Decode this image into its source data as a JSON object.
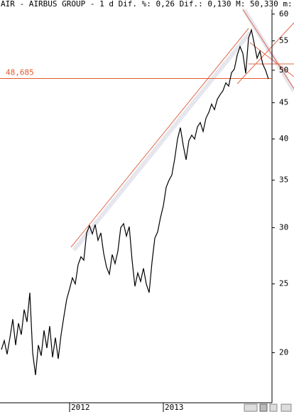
{
  "chart_data": {
    "type": "line",
    "title": "AIR - AIRBUS GROUP -  1 d Dif. %: 0,26 Dif.: 0,130 M: 50,330 m:",
    "categories": [
      null,
      null,
      null,
      null,
      null,
      null,
      null,
      null,
      null,
      null,
      null,
      null,
      null,
      null,
      null,
      null,
      null,
      null,
      null,
      null,
      null,
      null,
      null,
      null,
      "2012",
      null,
      null,
      null,
      null,
      null,
      null,
      null,
      null,
      null,
      null,
      null,
      null,
      null,
      null,
      null,
      null,
      null,
      null,
      null,
      null,
      null,
      null,
      null,
      null,
      null,
      null,
      null,
      null,
      null,
      null,
      null,
      null,
      "2013",
      null,
      null,
      null,
      null,
      null,
      null,
      null,
      null,
      null,
      null,
      null,
      null,
      null,
      null,
      null,
      null,
      null,
      null,
      null,
      null,
      null,
      null,
      null,
      null,
      null,
      null,
      null,
      null,
      null,
      null,
      null,
      null,
      null,
      null,
      null,
      null,
      null
    ],
    "values": [
      20.2,
      20.8,
      19.9,
      21.0,
      22.3,
      20.5,
      22.0,
      21.2,
      23.0,
      22.1,
      24.3,
      20.0,
      18.6,
      20.5,
      19.8,
      21.5,
      20.3,
      21.8,
      19.7,
      21.0,
      19.6,
      21.2,
      22.5,
      23.8,
      24.6,
      25.5,
      25.0,
      26.6,
      27.3,
      27.0,
      29.5,
      30.2,
      29.4,
      30.3,
      28.8,
      29.5,
      27.6,
      26.4,
      25.8,
      27.5,
      26.7,
      27.8,
      30.0,
      30.4,
      29.2,
      30.1,
      27.0,
      24.8,
      25.9,
      25.2,
      26.3,
      25.0,
      24.3,
      26.8,
      29.0,
      29.6,
      31.0,
      32.2,
      34.2,
      35.0,
      35.6,
      37.5,
      40.0,
      41.5,
      39.2,
      37.4,
      39.8,
      40.5,
      40.0,
      41.6,
      42.2,
      41.0,
      42.8,
      43.6,
      44.8,
      44.0,
      45.5,
      46.2,
      46.8,
      48.0,
      47.5,
      49.6,
      50.2,
      52.5,
      54.0,
      52.8,
      49.5,
      55.5,
      57.0,
      54.5,
      52.0,
      53.2,
      51.0,
      50.0,
      48.6
    ],
    "color": "#000000",
    "ylim": [
      17,
      62.8
    ],
    "yticks": [
      20,
      25,
      30,
      35,
      40,
      45,
      50,
      55,
      60
    ],
    "log_scale": true,
    "grid": false,
    "hline": {
      "value": 48.685,
      "label": "48,685",
      "color": "#e05a2a"
    }
  }
}
